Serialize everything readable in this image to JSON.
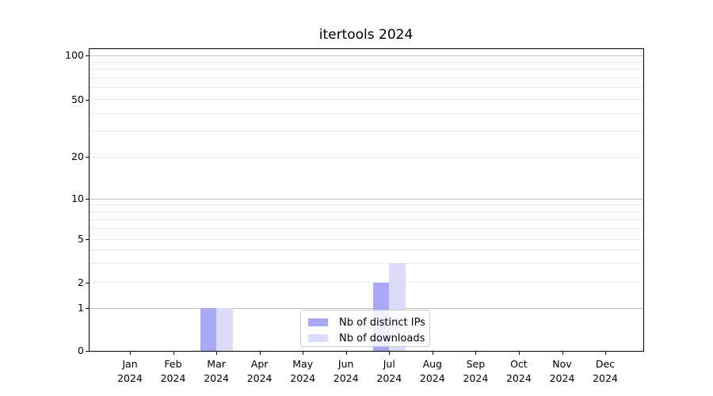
{
  "chart_data": {
    "type": "bar",
    "title": "itertools 2024",
    "x": [
      "Jan 2024",
      "Feb 2024",
      "Mar 2024",
      "Apr 2024",
      "May 2024",
      "Jun 2024",
      "Jul 2024",
      "Aug 2024",
      "Sep 2024",
      "Oct 2024",
      "Nov 2024",
      "Dec 2024"
    ],
    "x_tick_month": [
      "Jan",
      "Feb",
      "Mar",
      "Apr",
      "May",
      "Jun",
      "Jul",
      "Aug",
      "Sep",
      "Oct",
      "Nov",
      "Dec"
    ],
    "x_tick_year": "2024",
    "series": [
      {
        "name": "Nb of distinct IPs",
        "color": "#a8a8f5",
        "values": [
          0,
          0,
          1,
          0,
          0,
          0,
          2,
          0,
          0,
          0,
          0,
          0
        ]
      },
      {
        "name": "Nb of downloads",
        "color": "#dbdbfa",
        "values": [
          0,
          0,
          1,
          0,
          0,
          0,
          3,
          0,
          0,
          0,
          0,
          0
        ]
      }
    ],
    "y_axis": {
      "tick_labels": [
        "0",
        "1",
        "2",
        "5",
        "10",
        "20",
        "50",
        "100"
      ],
      "tick_values": [
        0,
        1,
        2,
        5,
        10,
        20,
        50,
        100
      ],
      "major_grid_values": [
        1,
        10,
        100
      ],
      "minor_grid_values": [
        2,
        3,
        4,
        5,
        6,
        7,
        8,
        9,
        20,
        30,
        40,
        50,
        60,
        70,
        80,
        90
      ],
      "scale": "log-like"
    },
    "legend_position": "lower center",
    "grid": true,
    "colors": {
      "major_grid": "#bdbdbd",
      "minor_grid": "#e9e9e9",
      "axis": "#000000",
      "legend_border": "#cccccc",
      "text": "#000000"
    }
  }
}
